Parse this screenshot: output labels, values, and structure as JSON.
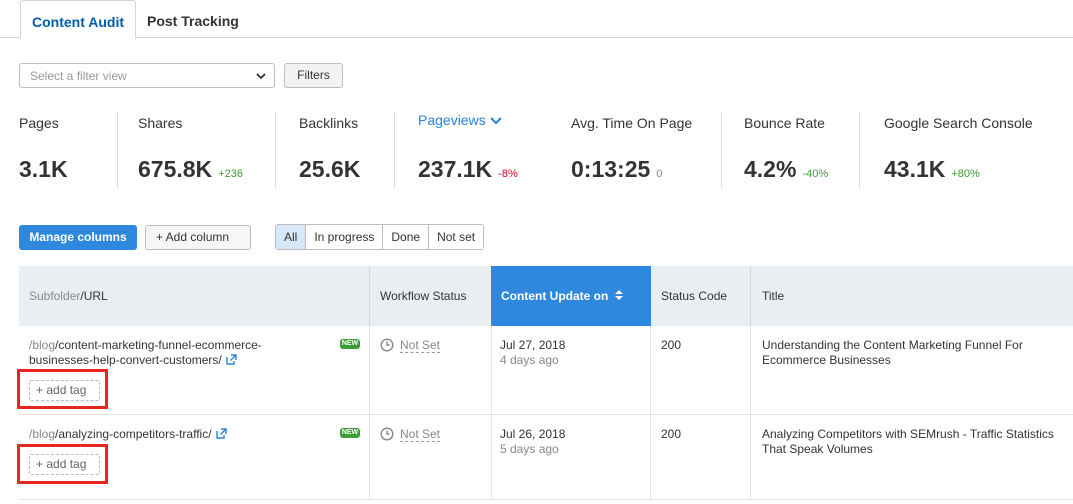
{
  "tabs": [
    "Content Audit",
    "Post Tracking"
  ],
  "filter": {
    "placeholder": "Select a filter view",
    "button": "Filters"
  },
  "metrics": [
    {
      "label": "Pages",
      "value": "3.1K",
      "delta": ""
    },
    {
      "label": "Shares",
      "value": "675.8K",
      "delta": "+236"
    },
    {
      "label": "Backlinks",
      "value": "25.6K",
      "delta": ""
    },
    {
      "label": "Pageviews",
      "value": "237.1K",
      "delta": "-8%"
    },
    {
      "label": "Avg. Time On Page",
      "value": "0:13:25",
      "delta": "0"
    },
    {
      "label": "Bounce Rate",
      "value": "4.2%",
      "delta": "-40%"
    },
    {
      "label": "Google Search Console",
      "value": "43.1K",
      "delta": "+80%"
    }
  ],
  "toolbar": {
    "manage": "Manage columns",
    "add_column": "+  Add column",
    "filters": [
      "All",
      "In progress",
      "Done",
      "Not set"
    ]
  },
  "table": {
    "headers": {
      "subfolder": "Subfolder",
      "slash_url": "/URL",
      "workflow": "Workflow Status",
      "content_update": "Content Update on",
      "status_code": "Status Code",
      "title": "Title"
    },
    "rows": [
      {
        "url_prefix": "/blog",
        "url_line1": "/content-marketing-funnel-ecommerce-",
        "url_line2": "businesses-help-convert-customers/",
        "badge": "NEW",
        "workflow": "Not Set",
        "date": "Jul 27, 2018",
        "ago": "4 days ago",
        "status": "200",
        "title_line1": "Understanding the Content Marketing Funnel For",
        "title_line2": "Ecommerce Businesses",
        "tag": "+ add tag"
      },
      {
        "url_prefix": "/blog",
        "url_line1": "/analyzing-competitors-traffic/",
        "url_line2": "",
        "badge": "NEW",
        "workflow": "Not Set",
        "date": "Jul 26, 2018",
        "ago": "5 days ago",
        "status": "200",
        "title_line1": "Analyzing Competitors with SEMrush - Traffic Statistics",
        "title_line2": "That Speak Volumes",
        "tag": "+ add tag"
      }
    ]
  },
  "colors": {
    "accent": "#2e88dd",
    "tab_active": "#005ca8",
    "positive": "#3c9d35",
    "negative": "#d0021b",
    "highlight": "#e8261b"
  }
}
